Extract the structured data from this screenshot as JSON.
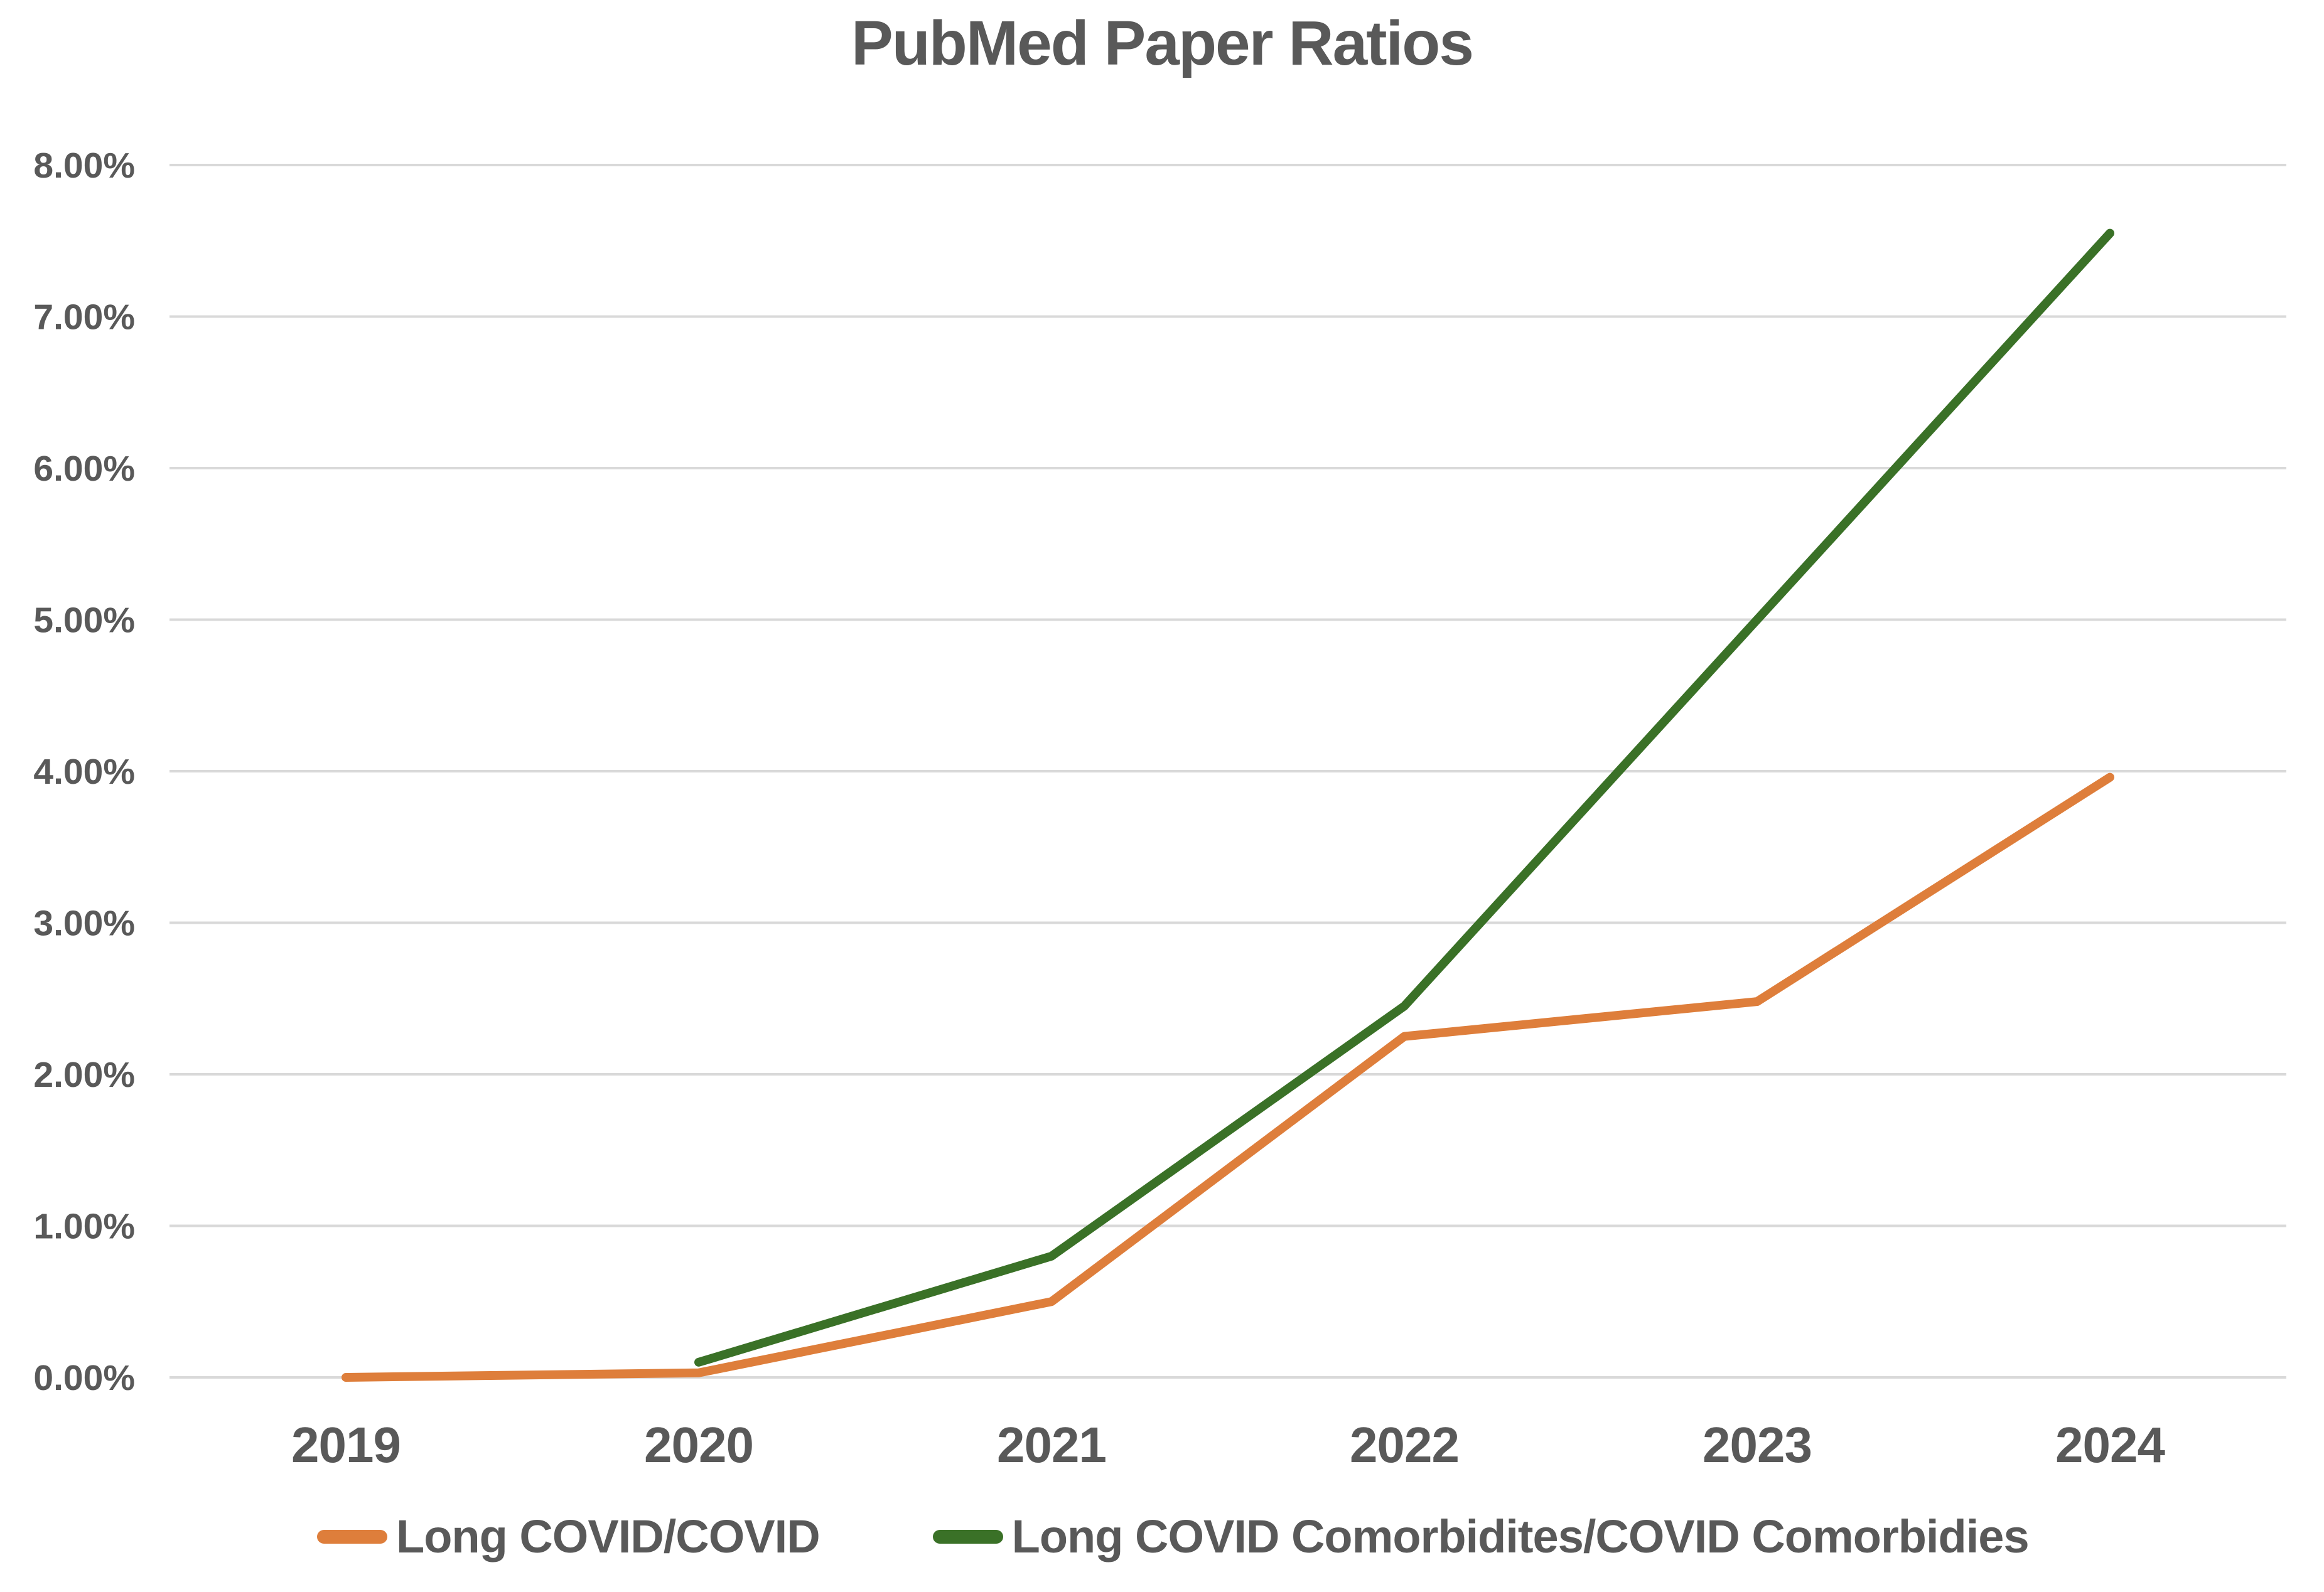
{
  "chart_data": {
    "type": "line",
    "title": "PubMed Paper Ratios",
    "categories": [
      "2019",
      "2020",
      "2021",
      "2022",
      "2023",
      "2024"
    ],
    "series": [
      {
        "name": "Long COVID/COVID",
        "color": "#DE7E3B",
        "values": [
          0.0,
          0.03,
          0.5,
          2.25,
          2.48,
          3.96
        ]
      },
      {
        "name": "Long COVID Comorbidites/COVID Comorbidies",
        "color": "#3A7127",
        "values": [
          null,
          0.1,
          0.8,
          2.45,
          5.0,
          7.55
        ]
      }
    ],
    "xlabel": "",
    "ylabel": "",
    "ylim": [
      0,
      8
    ],
    "y_tick_step": 1,
    "y_tick_labels": [
      "0.00%",
      "1.00%",
      "2.00%",
      "3.00%",
      "4.00%",
      "5.00%",
      "6.00%",
      "7.00%",
      "8.00%"
    ],
    "grid": "horizontal",
    "gridline_color": "#D9D9D9",
    "text_color": "#595959",
    "legend_position": "bottom"
  }
}
